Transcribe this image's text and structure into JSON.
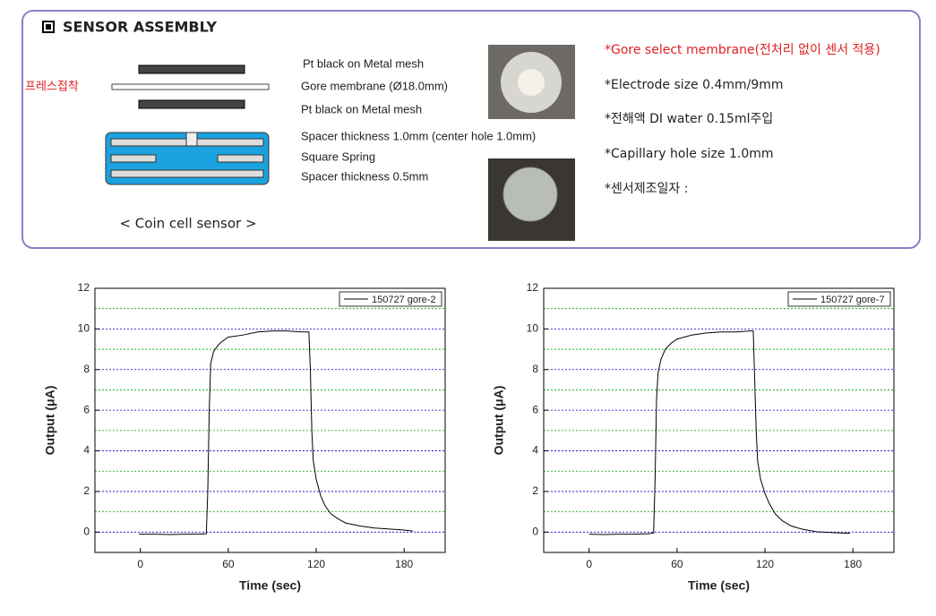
{
  "header": {
    "title": "SENSOR ASSEMBLY"
  },
  "diagram": {
    "side_label": "프레스접착",
    "caption": "< Coin cell sensor >",
    "layers": [
      "Pt black on Metal mesh",
      "Gore membrane (Ø18.0mm)",
      "Pt black on Metal mesh",
      "Spacer thickness 1.0mm (center hole 1.0mm)",
      "Square Spring",
      "Spacer thickness 0.5mm"
    ]
  },
  "notes": [
    "*Gore select membrane(전처리 없이 센서 적용)",
    "*Electrode size  0.4mm/9mm",
    "*전해액  DI  water  0.15ml주입",
    "*Capillary hole size  1.0mm",
    "*센서제조일자  :"
  ],
  "chart_data": [
    {
      "type": "line",
      "xlabel": "Time (sec)",
      "ylabel": "Output (μA)",
      "xlim": [
        -31,
        208
      ],
      "ylim": [
        -1,
        12
      ],
      "xticks": [
        0,
        60,
        120,
        180
      ],
      "yticks": [
        0,
        2,
        4,
        6,
        8,
        10,
        12
      ],
      "minor_yticks": [
        1,
        3,
        5,
        7,
        9,
        11
      ],
      "grid": true,
      "grid_color": "#0000cc",
      "minor_grid_color": "#00aa00",
      "legend": "upper right",
      "series": [
        {
          "name": "150727  gore-2",
          "color": "#000000",
          "x": [
            -1,
            10,
            20,
            30,
            40,
            45,
            46,
            47,
            48,
            50,
            53,
            56,
            60,
            65,
            70,
            80,
            90,
            100,
            110,
            115,
            116,
            117,
            118,
            120,
            123,
            126,
            130,
            135,
            140,
            150,
            160,
            170,
            180,
            186
          ],
          "values": [
            -0.1,
            -0.1,
            -0.12,
            -0.1,
            -0.1,
            -0.08,
            2,
            6,
            8.3,
            8.9,
            9.2,
            9.4,
            9.6,
            9.65,
            9.7,
            9.85,
            9.9,
            9.9,
            9.85,
            9.85,
            8,
            5,
            3.5,
            2.6,
            1.8,
            1.3,
            0.9,
            0.65,
            0.45,
            0.3,
            0.2,
            0.15,
            0.1,
            0.05
          ]
        }
      ]
    },
    {
      "type": "line",
      "xlabel": "Time (sec)",
      "ylabel": "Output (μA)",
      "xlim": [
        -31,
        208
      ],
      "ylim": [
        -1,
        12
      ],
      "xticks": [
        0,
        60,
        120,
        180
      ],
      "yticks": [
        0,
        2,
        4,
        6,
        8,
        10,
        12
      ],
      "minor_yticks": [
        1,
        3,
        5,
        7,
        9,
        11
      ],
      "grid": true,
      "grid_color": "#0000cc",
      "minor_grid_color": "#00aa00",
      "legend": "upper right",
      "series": [
        {
          "name": "150727  gore-7",
          "color": "#000000",
          "x": [
            0,
            10,
            20,
            30,
            40,
            44,
            45,
            46,
            47,
            49,
            52,
            56,
            60,
            65,
            70,
            80,
            90,
            100,
            110,
            112,
            113,
            114,
            115,
            117,
            120,
            123,
            127,
            132,
            138,
            145,
            155,
            165,
            175,
            178
          ],
          "values": [
            -0.1,
            -0.12,
            -0.1,
            -0.1,
            -0.08,
            -0.05,
            2.5,
            6.5,
            7.8,
            8.5,
            9.0,
            9.3,
            9.5,
            9.6,
            9.7,
            9.8,
            9.85,
            9.85,
            9.9,
            9.9,
            7.5,
            5,
            3.5,
            2.6,
            1.9,
            1.4,
            0.9,
            0.55,
            0.3,
            0.15,
            0.02,
            -0.02,
            -0.05,
            -0.05
          ]
        }
      ]
    }
  ]
}
